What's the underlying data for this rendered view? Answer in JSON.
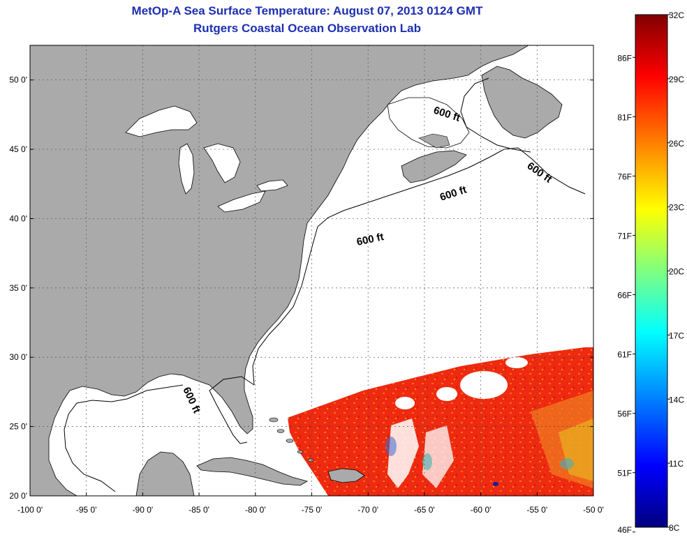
{
  "title_line1": "MetOp-A Sea Surface Temperature:  August 07, 2013 0124 GMT",
  "title_line2": "Rutgers Coastal Ocean Observation Lab",
  "map": {
    "lon_ticks": [
      "-100 0'",
      "-95 0'",
      "-90 0'",
      "-85 0'",
      "-80 0'",
      "-75 0'",
      "-70 0'",
      "-65 0'",
      "-60 0'",
      "-55 0'",
      "-50 0'"
    ],
    "lat_ticks": [
      "50 0'",
      "45 0'",
      "40 0'",
      "35 0'",
      "30 0'",
      "25 0'",
      "20 0'"
    ],
    "lon_range": [
      -100,
      -50
    ],
    "lat_range": [
      20,
      52.5
    ],
    "grid": true,
    "isobath_label": "600 ft",
    "colors": {
      "land": "#aaaaaa",
      "ocean": "#ffffff",
      "sst_warm": "#ee2a10",
      "title": "#1d2fb0"
    }
  },
  "colorbar": {
    "celsius_labels": [
      "32C",
      "29C",
      "26C",
      "23C",
      "20C",
      "17C",
      "14C",
      "11C",
      "8C"
    ],
    "fahrenheit_labels": [
      "86F",
      "81F",
      "76F",
      "71F",
      "66F",
      "61F",
      "56F",
      "51F",
      "46F"
    ],
    "range_c": [
      8,
      32
    ],
    "gradient": [
      "#800000",
      "#ff0000",
      "#ff8000",
      "#ffff00",
      "#80ff80",
      "#00ffff",
      "#0080ff",
      "#0000ff",
      "#000080"
    ]
  }
}
